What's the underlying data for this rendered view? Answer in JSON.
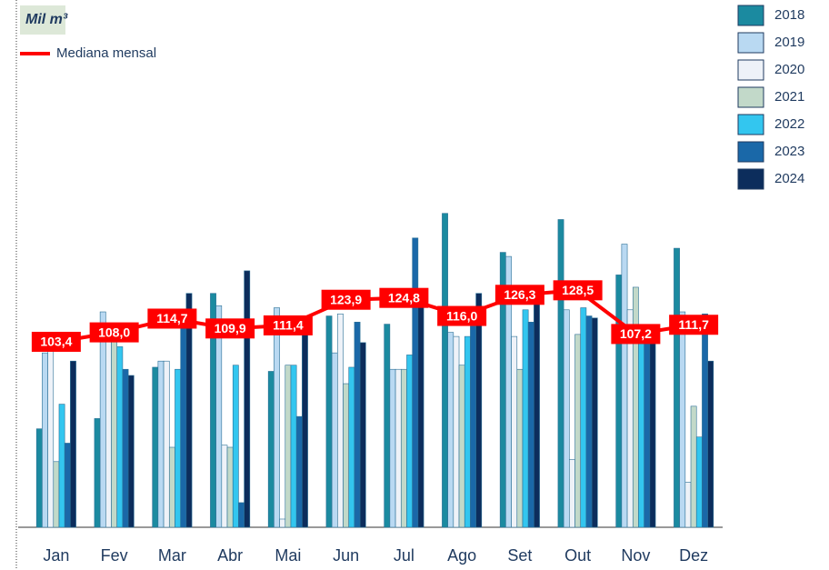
{
  "chart_data": {
    "type": "bar",
    "title": "Mil m³",
    "categories": [
      "Jan",
      "Fev",
      "Mar",
      "Abr",
      "Mai",
      "Jun",
      "Jul",
      "Ago",
      "Set",
      "Out",
      "Nov",
      "Dez"
    ],
    "ylim": [
      13,
      270
    ],
    "series": [
      {
        "name": "2018",
        "color": "#1b8aa0",
        "values": [
          61,
          66,
          91,
          127,
          89,
          116,
          112,
          166,
          147,
          163,
          136,
          149
        ]
      },
      {
        "name": "2019",
        "color": "#b9d9f2",
        "values": [
          98,
          118,
          94,
          121,
          120,
          98,
          90,
          108,
          145,
          119,
          151,
          118
        ]
      },
      {
        "name": "2020",
        "color": "#eef2f8",
        "values": [
          99,
          112,
          94,
          53,
          17,
          117,
          90,
          106,
          106,
          46,
          119,
          35
        ]
      },
      {
        "name": "2021",
        "color": "#c2d9c9",
        "values": [
          45,
          108,
          52,
          52,
          92,
          83,
          90,
          92,
          90,
          107,
          130,
          72
        ]
      },
      {
        "name": "2022",
        "color": "#33c6ef",
        "values": [
          73,
          101,
          90,
          92,
          92,
          91,
          97,
          106,
          119,
          120,
          105,
          57
        ]
      },
      {
        "name": "2023",
        "color": "#1a68a8",
        "values": [
          54,
          90,
          114,
          25,
          67,
          113,
          154,
          111,
          113,
          116,
          110,
          117
        ]
      },
      {
        "name": "2024",
        "color": "#0c2d5c",
        "values": [
          94,
          87,
          127,
          138,
          110,
          103,
          123,
          127,
          123,
          115,
          105,
          94
        ]
      }
    ],
    "median": {
      "name": "Mediana mensal",
      "color": "#ff0000",
      "values": [
        103.4,
        108.0,
        114.7,
        109.9,
        111.4,
        123.9,
        124.8,
        116.0,
        126.3,
        128.5,
        107.2,
        111.7
      ],
      "value_labels": [
        "103,4",
        "108,0",
        "114,7",
        "109,9",
        "111,4",
        "123,9",
        "124,8",
        "116,0",
        "126,3",
        "128,5",
        "107,2",
        "111,7"
      ]
    }
  }
}
